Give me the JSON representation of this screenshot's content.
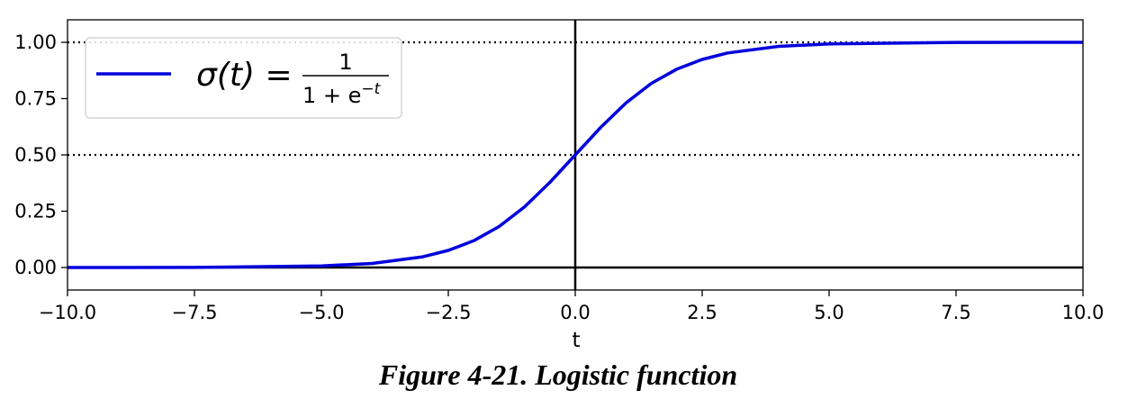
{
  "chart_data": {
    "type": "line",
    "function": "logistic",
    "xlabel": "t",
    "ylabel": "",
    "xlim": [
      -10,
      10
    ],
    "ylim": [
      -0.1,
      1.1
    ],
    "x_ticks": [
      -10,
      -7.5,
      -5,
      -2.5,
      0,
      2.5,
      5,
      7.5,
      10
    ],
    "x_tick_labels": [
      "−10.0",
      "−7.5",
      "−5.0",
      "−2.5",
      "0.0",
      "2.5",
      "5.0",
      "7.5",
      "10.0"
    ],
    "y_ticks": [
      0,
      0.25,
      0.5,
      0.75,
      1
    ],
    "y_tick_labels": [
      "0.00",
      "0.25",
      "0.50",
      "0.75",
      "1.00"
    ],
    "hlines": [
      {
        "y": 0,
        "style": "solid"
      },
      {
        "y": 0.5,
        "style": "dotted"
      },
      {
        "y": 1,
        "style": "dotted"
      }
    ],
    "vlines": [
      {
        "x": 0,
        "style": "solid"
      }
    ],
    "series": [
      {
        "name": "σ(t) = 1 / (1 + e^−t)",
        "color": "#0000dd",
        "x": [
          -10,
          -7.5,
          -5,
          -4,
          -3,
          -2.5,
          -2,
          -1.5,
          -1,
          -0.5,
          0,
          0.5,
          1,
          1.5,
          2,
          2.5,
          3,
          4,
          5,
          7.5,
          10
        ],
        "y": [
          4.54e-05,
          0.000553,
          0.00669,
          0.018,
          0.0474,
          0.0759,
          0.119,
          0.182,
          0.269,
          0.378,
          0.5,
          0.622,
          0.731,
          0.818,
          0.881,
          0.924,
          0.953,
          0.982,
          0.993,
          0.99945,
          0.99995
        ]
      }
    ],
    "legend": {
      "position": "top-left",
      "lhs": "σ(t) =",
      "numerator": "1",
      "denominator_base": "1 + e",
      "denominator_exponent": "−t"
    },
    "grid": false
  },
  "caption": "Figure 4-21. Logistic function"
}
